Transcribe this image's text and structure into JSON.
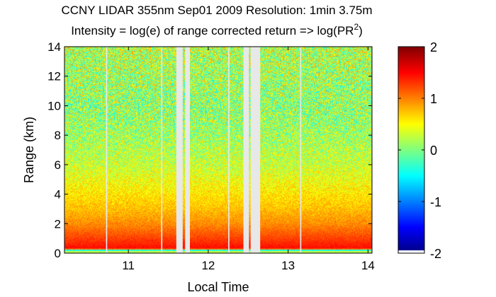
{
  "chart_data": {
    "type": "heatmap",
    "title_line1": "CCNY LIDAR 355nm Sep01 2009 Resolution: 1min 3.75m",
    "title_line2_prefix": "Intensity = log(e) of range corrected return => log(PR",
    "title_line2_sup": "2",
    "title_line2_suffix": ")",
    "xlabel": "Local Time",
    "ylabel": "Range (km)",
    "xlim": [
      10.2,
      14.05
    ],
    "ylim": [
      0,
      14
    ],
    "xticks": [
      11,
      12,
      13,
      14
    ],
    "xtick_labels": [
      "11",
      "12",
      "13",
      "14"
    ],
    "yticks": [
      0,
      2,
      4,
      6,
      8,
      10,
      12,
      14
    ],
    "ytick_labels": [
      "0",
      "2",
      "4",
      "6",
      "8",
      "10",
      "12",
      "14"
    ],
    "colorbar": {
      "range": [
        -2,
        2
      ],
      "ticks": [
        -2,
        -1,
        0,
        1,
        2
      ],
      "tick_labels": [
        "-2",
        "-1",
        "0",
        "1",
        "2"
      ],
      "colormap": "jet"
    },
    "data_gaps": [
      {
        "start": 10.72,
        "end": 10.735
      },
      {
        "start": 11.41,
        "end": 11.425
      },
      {
        "start": 11.6,
        "end": 11.68
      },
      {
        "start": 11.71,
        "end": 11.77
      },
      {
        "start": 12.25,
        "end": 12.265
      },
      {
        "start": 12.44,
        "end": 12.51
      },
      {
        "start": 12.53,
        "end": 12.65
      },
      {
        "start": 13.15,
        "end": 13.165
      }
    ],
    "intensity_profile": [
      {
        "range": 0.1,
        "value": 0.2
      },
      {
        "range": 0.35,
        "value": 1.45
      },
      {
        "range": 1.0,
        "value": 1.25
      },
      {
        "range": 2.0,
        "value": 0.95
      },
      {
        "range": 3.0,
        "value": 0.75
      },
      {
        "range": 4.0,
        "value": 0.6
      },
      {
        "range": 5.0,
        "value": 0.45
      },
      {
        "range": 6.0,
        "value": 0.3
      },
      {
        "range": 8.0,
        "value": 0.15
      },
      {
        "range": 10.0,
        "value": 0.1
      },
      {
        "range": 14.0,
        "value": 0.25
      }
    ]
  }
}
